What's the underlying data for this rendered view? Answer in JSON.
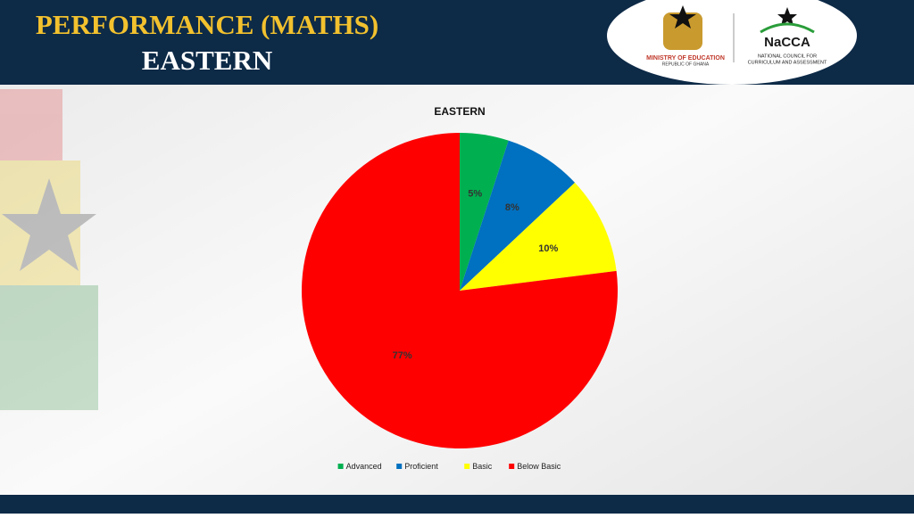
{
  "header": {
    "title": "PERFORMANCE (MATHS)",
    "subtitle": "EASTERN",
    "logo_left": {
      "line1": "MINISTRY OF EDUCATION",
      "line2": "REPUBLIC OF GHANA"
    },
    "logo_right": {
      "name": "NaCCA",
      "line1": "NATIONAL COUNCIL FOR",
      "line2": "CURRICULUM AND ASSESSMENT"
    }
  },
  "chart_data": {
    "type": "pie",
    "title": "EASTERN",
    "categories": [
      "Advanced",
      "Proficient",
      "Basic",
      "Below Basic"
    ],
    "values": [
      5,
      8,
      10,
      77
    ],
    "value_labels": [
      "5%",
      "8%",
      "10%",
      "77%"
    ],
    "colors": [
      "#00b050",
      "#0070c0",
      "#ffff00",
      "#ff0000"
    ],
    "legend": "bottom"
  }
}
